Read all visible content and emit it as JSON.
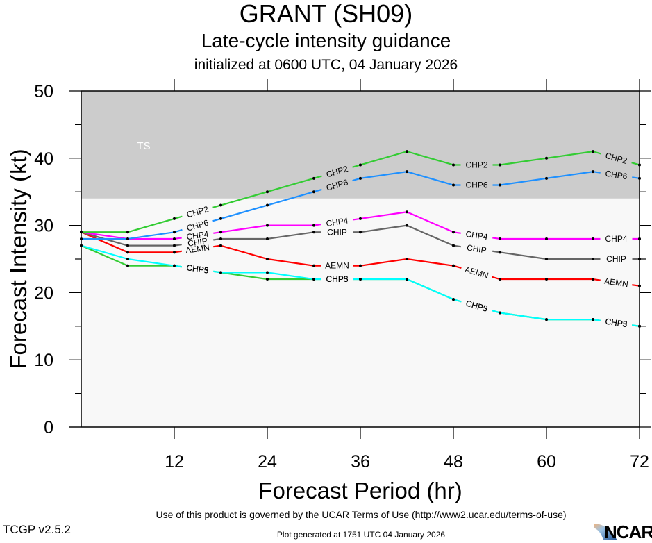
{
  "header": {
    "title": "GRANT (SH09)",
    "subtitle": "Late-cycle intensity guidance",
    "initialized": "initialized at 0600 UTC, 04 January 2026"
  },
  "footer": {
    "terms": "Use of this product is governed by the UCAR Terms of Use (http://www2.ucar.edu/terms-of-use)",
    "version": "TCGP v2.5.2",
    "generated": "Plot generated at 1751 UTC   04 January 2026",
    "logo_text": "NCAR"
  },
  "chart_data": {
    "type": "line",
    "title": "GRANT (SH09)",
    "subtitle": "Late-cycle intensity guidance",
    "xlabel": "Forecast Period (hr)",
    "ylabel": "Forecast Intensity (kt)",
    "xlim": [
      0,
      72
    ],
    "ylim": [
      0,
      50
    ],
    "xticks": [
      12,
      24,
      36,
      48,
      60,
      72
    ],
    "yticks": [
      0,
      10,
      20,
      30,
      40,
      50
    ],
    "yminor_step": 5,
    "grid": false,
    "legend": "none (inline line labels)",
    "bands": [
      {
        "label": "TS",
        "from": 34,
        "to": 50,
        "color": "#cccccc"
      },
      {
        "label": "",
        "from": 0,
        "to": 34,
        "color": "#f8f8f8"
      }
    ],
    "x": [
      0,
      6,
      12,
      18,
      24,
      30,
      36,
      42,
      48,
      54,
      60,
      66,
      72
    ],
    "series": [
      {
        "name": "CHP5",
        "label": "CHP5",
        "color": "#33cc33",
        "values": [
          27,
          24,
          24,
          23,
          22,
          22,
          22,
          22,
          19,
          17,
          16,
          16,
          15
        ]
      },
      {
        "name": "CHP3",
        "label": "CHP3",
        "color": "#00ffff",
        "values": [
          27,
          25,
          24,
          23,
          23,
          22,
          22,
          22,
          19,
          17,
          16,
          16,
          15
        ]
      },
      {
        "name": "AEMN",
        "label": "AEMN",
        "color": "#ff0000",
        "values": [
          29,
          26,
          26,
          27,
          25,
          24,
          24,
          25,
          24,
          22,
          22,
          22,
          21
        ]
      },
      {
        "name": "CHIP",
        "label": "CHIP",
        "color": "#666666",
        "values": [
          29,
          27,
          27,
          28,
          28,
          29,
          29,
          30,
          27,
          26,
          25,
          25,
          25
        ]
      },
      {
        "name": "CHP4",
        "label": "CHP4",
        "color": "#ff00ff",
        "values": [
          29,
          28,
          28,
          29,
          30,
          30,
          31,
          32,
          29,
          28,
          28,
          28,
          28
        ]
      },
      {
        "name": "CHP6",
        "label": "CHP6",
        "color": "#1e90ff",
        "values": [
          28,
          28,
          29,
          31,
          33,
          35,
          37,
          38,
          36,
          36,
          37,
          38,
          37
        ]
      },
      {
        "name": "CHP2",
        "label": "CHP2",
        "color": "#33cc33",
        "values": [
          29,
          29,
          31,
          33,
          35,
          37,
          39,
          41,
          39,
          39,
          40,
          41,
          39
        ]
      }
    ],
    "label_segments": [
      3,
      6,
      9,
      12
    ]
  }
}
